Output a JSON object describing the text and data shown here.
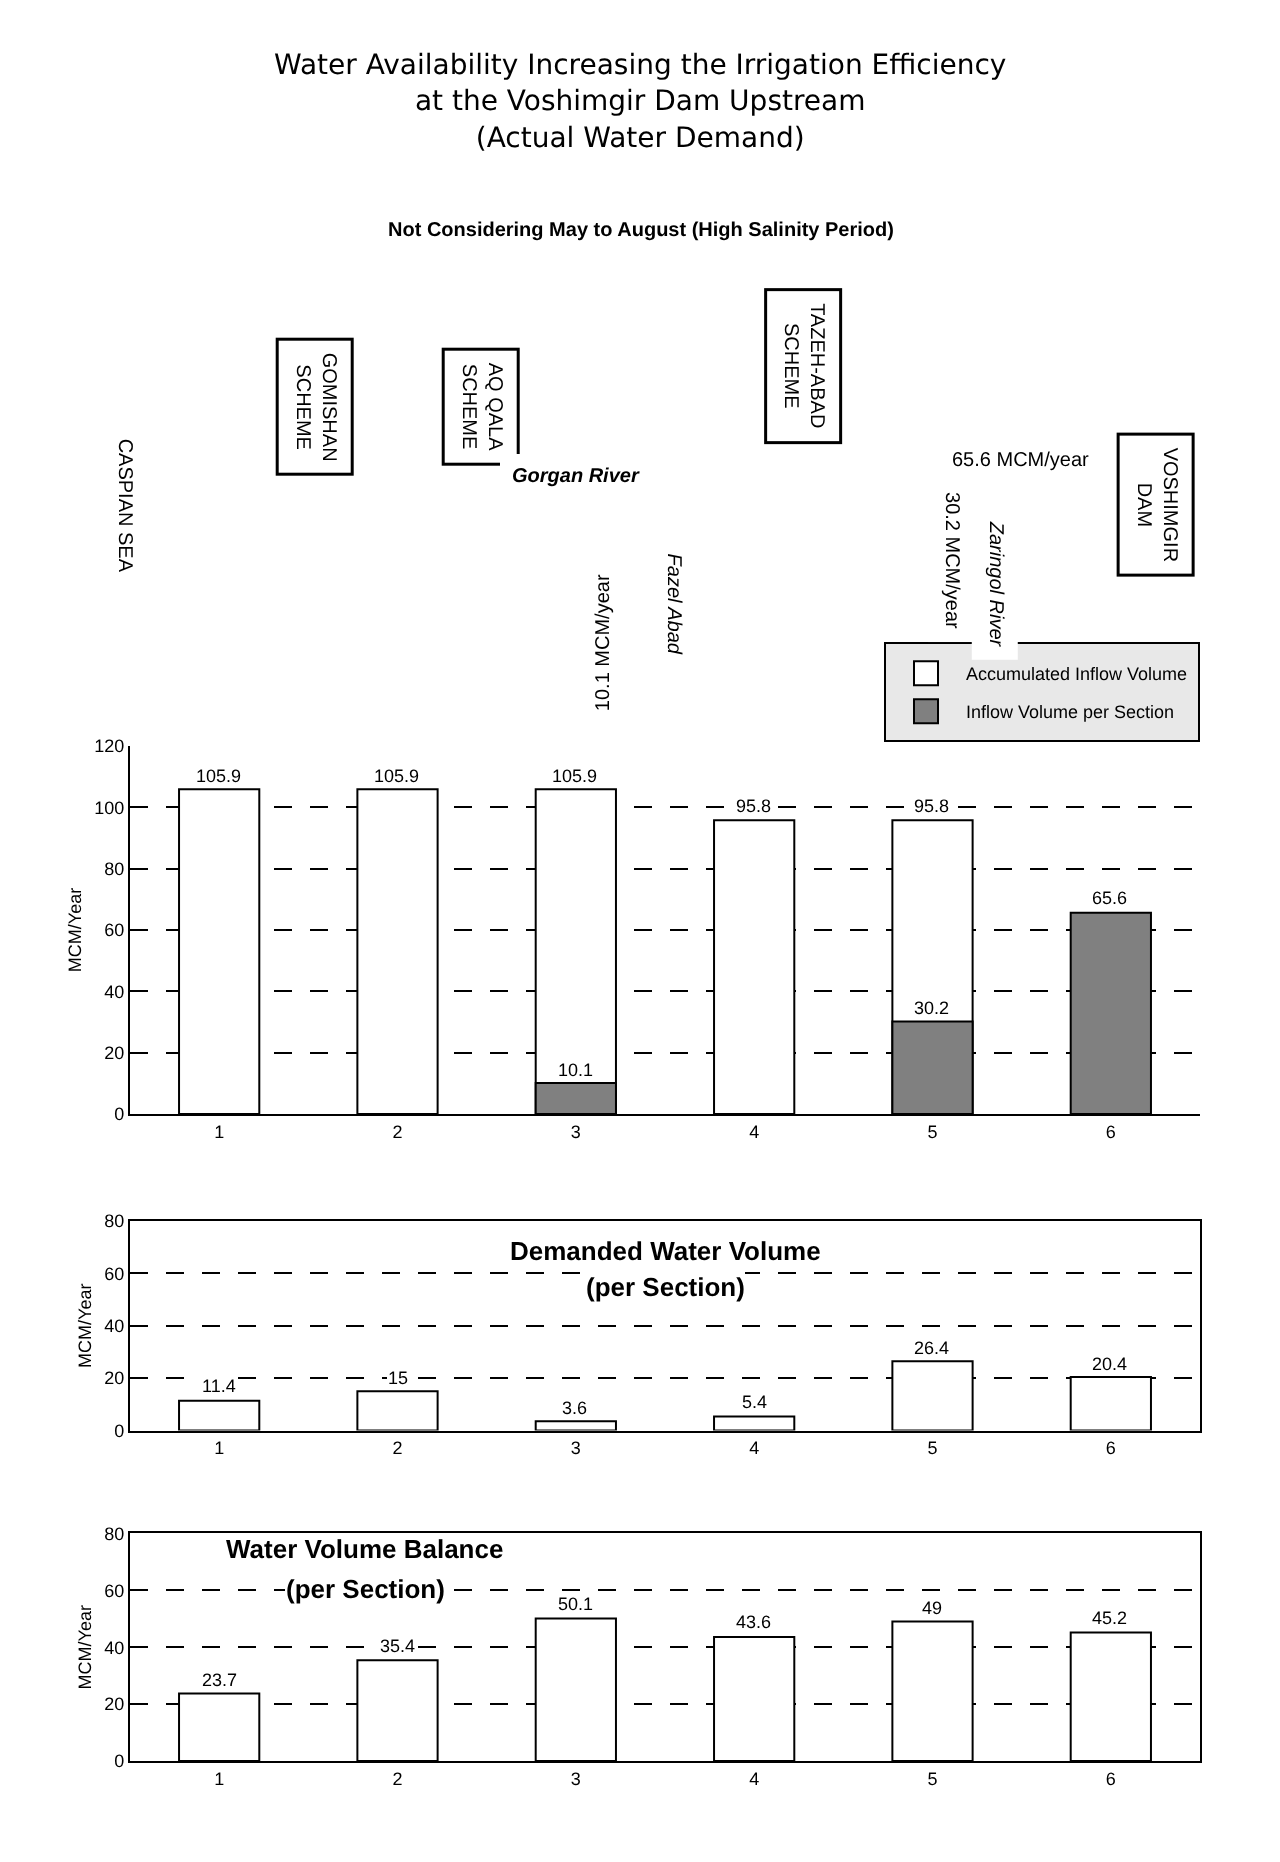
{
  "chart_data": [
    {
      "type": "bar",
      "title": "Water Availability Increasing the Irrigation Efficiency at the Voshimgir Dam Upstream (Actual Water Demand)",
      "subtitle": "Not Considering May to August (High Salinity Period)",
      "annotations": [
        "CASPIAN SEA",
        "GOMISHAN SCHEME",
        "AQ QALA SCHEME",
        "TAZEH-ABAD SCHEME",
        "VOSHIMGIR DAM",
        "Gorgan River",
        "Fazel Abad",
        "10.1 MCM/year",
        "65.6 MCM/year",
        "Zaringol River",
        "30.2 MCM/year"
      ],
      "ylabel": "MCM/Year",
      "categories": [
        "1",
        "2",
        "3",
        "4",
        "5",
        "6"
      ],
      "series": [
        {
          "name": "Accumulated Inflow Volume",
          "color": "#ffffff",
          "values": [
            105.9,
            105.9,
            105.9,
            95.8,
            95.8,
            null
          ],
          "value_labels": [
            "105.9",
            "105.9",
            "105.9",
            "95.8",
            "95.8",
            null
          ]
        },
        {
          "name": "Inflow Volume per Section",
          "color": "#808080",
          "values": [
            null,
            null,
            10.1,
            null,
            30.2,
            65.6
          ],
          "value_labels": [
            null,
            null,
            "10.1",
            null,
            "30.2",
            "65.6"
          ]
        }
      ],
      "ylim": [
        0,
        120
      ],
      "yticks": [
        0,
        20,
        40,
        60,
        80,
        100,
        120
      ],
      "grid": "y",
      "legend": "top right"
    },
    {
      "type": "bar",
      "annotations": [
        "Demanded Water Volume",
        "(per Section)"
      ],
      "ylabel": "MCM/Year",
      "categories": [
        "1",
        "2",
        "3",
        "4",
        "5",
        "6"
      ],
      "values": [
        11.4,
        15,
        3.6,
        5.4,
        26.4,
        20.4
      ],
      "color": "#ffffff",
      "data_labels": true,
      "ylim": [
        0,
        80
      ],
      "yticks": [
        0,
        20,
        40,
        60,
        80
      ],
      "grid": "y"
    },
    {
      "type": "bar",
      "annotations": [
        "Water Volume Balance",
        "(per Section)"
      ],
      "ylabel": "MCM/Year",
      "categories": [
        "1",
        "2",
        "3",
        "4",
        "5",
        "6"
      ],
      "values": [
        23.7,
        35.4,
        50.1,
        43.6,
        49,
        45.2
      ],
      "color": "#ffffff",
      "data_labels": true,
      "ylim": [
        0,
        80
      ],
      "yticks": [
        0,
        20,
        40,
        60,
        80
      ],
      "grid": "y"
    }
  ]
}
